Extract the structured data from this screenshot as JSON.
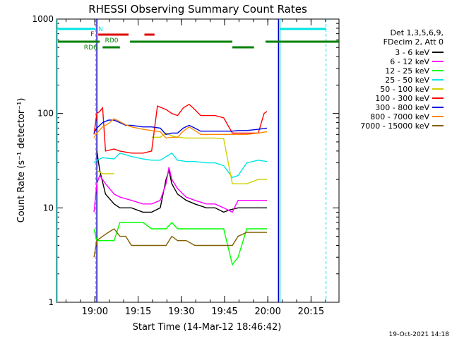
{
  "chart_data": {
    "type": "line",
    "title": "RHESSI Observing Summary Count Rates",
    "xlabel": "Start Time (14-Mar-12 18:46:42)",
    "ylabel": "Count Rate (s⁻¹ detector⁻¹)",
    "yscale": "log",
    "ylim": [
      1,
      1000
    ],
    "xlim_minutes_after_start": [
      0,
      98
    ],
    "y_tick_labels": [
      "1",
      "10",
      "100",
      "1000"
    ],
    "x_ticks": [
      {
        "label": "19:00",
        "minute": 13.3
      },
      {
        "label": "19:15",
        "minute": 28.3
      },
      {
        "label": "19:30",
        "minute": 43.3
      },
      {
        "label": "19:45",
        "minute": 58.3
      },
      {
        "label": "20:00",
        "minute": 73.3
      },
      {
        "label": "20:15",
        "minute": 88.3
      }
    ],
    "legend_header": [
      "Det 1,3,5,6,9,",
      "FDecim 2, Att 0"
    ],
    "legend_placement": "right",
    "series": [
      {
        "name": "3 - 6 keV",
        "color": "#000000",
        "points": [
          [
            13,
            0
          ],
          [
            14,
            40
          ],
          [
            15,
            25
          ],
          [
            17,
            14
          ],
          [
            20,
            11
          ],
          [
            22,
            10
          ],
          [
            26,
            10
          ],
          [
            30,
            9
          ],
          [
            33,
            9
          ],
          [
            36,
            10
          ],
          [
            38,
            20
          ],
          [
            39,
            25
          ],
          [
            40,
            18
          ],
          [
            42,
            14
          ],
          [
            45,
            12
          ],
          [
            48,
            11
          ],
          [
            52,
            10
          ],
          [
            55,
            10
          ],
          [
            58,
            9
          ],
          [
            60,
            9.5
          ],
          [
            63,
            10
          ],
          [
            66,
            10
          ],
          [
            70,
            10
          ],
          [
            73,
            10
          ]
        ]
      },
      {
        "name": "6 - 12 keV",
        "color": "#ff00ff",
        "points": [
          [
            13,
            9
          ],
          [
            14,
            18
          ],
          [
            15,
            22
          ],
          [
            17,
            18
          ],
          [
            20,
            14
          ],
          [
            22,
            13
          ],
          [
            26,
            12
          ],
          [
            30,
            11
          ],
          [
            33,
            11
          ],
          [
            36,
            12
          ],
          [
            38,
            18
          ],
          [
            39,
            27
          ],
          [
            40,
            20
          ],
          [
            42,
            16
          ],
          [
            45,
            13
          ],
          [
            48,
            12
          ],
          [
            52,
            11
          ],
          [
            55,
            11
          ],
          [
            58,
            10
          ],
          [
            61,
            9
          ],
          [
            63,
            12
          ],
          [
            66,
            12
          ],
          [
            70,
            12
          ],
          [
            73,
            12
          ]
        ]
      },
      {
        "name": "12 - 25 keV",
        "color": "#00ff00",
        "points": [
          [
            13,
            6
          ],
          [
            14,
            4.5
          ],
          [
            16,
            4.5
          ],
          [
            20,
            4.5
          ],
          [
            22,
            7
          ],
          [
            26,
            7
          ],
          [
            30,
            7
          ],
          [
            33,
            6
          ],
          [
            36,
            6
          ],
          [
            38,
            6
          ],
          [
            40,
            7
          ],
          [
            42,
            6
          ],
          [
            45,
            6
          ],
          [
            48,
            6
          ],
          [
            52,
            6
          ],
          [
            55,
            6
          ],
          [
            58,
            6
          ],
          [
            61,
            2.5
          ],
          [
            63,
            3
          ],
          [
            66,
            6
          ],
          [
            70,
            6
          ],
          [
            73,
            6
          ]
        ]
      },
      {
        "name": "25 - 50 keV",
        "color": "#00e5e5",
        "points": [
          [
            13,
            30
          ],
          [
            14,
            32
          ],
          [
            16,
            34
          ],
          [
            20,
            33
          ],
          [
            22,
            38
          ],
          [
            26,
            35
          ],
          [
            30,
            33
          ],
          [
            33,
            32
          ],
          [
            36,
            32
          ],
          [
            40,
            38
          ],
          [
            42,
            32
          ],
          [
            45,
            31
          ],
          [
            48,
            31
          ],
          [
            52,
            30
          ],
          [
            55,
            30
          ],
          [
            58,
            28
          ],
          [
            61,
            21
          ],
          [
            63,
            22
          ],
          [
            66,
            30
          ],
          [
            70,
            32
          ],
          [
            73,
            31
          ]
        ]
      },
      {
        "name": "50 - 100 keV",
        "color": "#d0d000",
        "points": [
          [
            14,
            25
          ],
          [
            16,
            23
          ],
          [
            20,
            23
          ],
          [
            22,
            0
          ],
          [
            33,
            56
          ],
          [
            36,
            56
          ],
          [
            38,
            62
          ],
          [
            40,
            58
          ],
          [
            42,
            56
          ],
          [
            45,
            55
          ],
          [
            55,
            55
          ],
          [
            58,
            54
          ],
          [
            61,
            18
          ],
          [
            63,
            18
          ],
          [
            66,
            18
          ],
          [
            70,
            20
          ],
          [
            73,
            20
          ]
        ]
      },
      {
        "name": "100 - 300 keV",
        "color": "#ff0000",
        "points": [
          [
            13,
            60
          ],
          [
            14,
            100
          ],
          [
            15,
            105
          ],
          [
            16,
            115
          ],
          [
            17,
            40
          ],
          [
            20,
            42
          ],
          [
            22,
            40
          ],
          [
            26,
            38
          ],
          [
            30,
            38
          ],
          [
            33,
            40
          ],
          [
            35,
            120
          ],
          [
            38,
            110
          ],
          [
            40,
            100
          ],
          [
            42,
            95
          ],
          [
            44,
            115
          ],
          [
            46,
            125
          ],
          [
            48,
            110
          ],
          [
            50,
            95
          ],
          [
            55,
            95
          ],
          [
            58,
            90
          ],
          [
            61,
            62
          ],
          [
            63,
            62
          ],
          [
            66,
            62
          ],
          [
            70,
            62
          ],
          [
            72,
            100
          ],
          [
            73,
            105
          ]
        ]
      },
      {
        "name": "300 - 800 keV",
        "color": "#0000e5",
        "points": [
          [
            13,
            62
          ],
          [
            14,
            70
          ],
          [
            16,
            80
          ],
          [
            18,
            85
          ],
          [
            20,
            85
          ],
          [
            22,
            80
          ],
          [
            24,
            75
          ],
          [
            26,
            75
          ],
          [
            30,
            72
          ],
          [
            33,
            72
          ],
          [
            36,
            70
          ],
          [
            38,
            60
          ],
          [
            40,
            62
          ],
          [
            42,
            62
          ],
          [
            44,
            70
          ],
          [
            46,
            75
          ],
          [
            48,
            70
          ],
          [
            50,
            65
          ],
          [
            55,
            65
          ],
          [
            58,
            65
          ],
          [
            61,
            65
          ],
          [
            63,
            66
          ],
          [
            66,
            66
          ],
          [
            70,
            68
          ],
          [
            73,
            70
          ]
        ]
      },
      {
        "name": "800 - 7000 keV",
        "color": "#ff8800",
        "points": [
          [
            13,
            55
          ],
          [
            14,
            62
          ],
          [
            16,
            72
          ],
          [
            18,
            78
          ],
          [
            20,
            88
          ],
          [
            22,
            82
          ],
          [
            24,
            76
          ],
          [
            26,
            72
          ],
          [
            30,
            68
          ],
          [
            33,
            66
          ],
          [
            36,
            64
          ],
          [
            38,
            55
          ],
          [
            40,
            56
          ],
          [
            42,
            56
          ],
          [
            44,
            65
          ],
          [
            46,
            72
          ],
          [
            48,
            66
          ],
          [
            50,
            60
          ],
          [
            55,
            60
          ],
          [
            58,
            60
          ],
          [
            61,
            60
          ],
          [
            63,
            60
          ],
          [
            66,
            60
          ],
          [
            70,
            62
          ],
          [
            73,
            64
          ]
        ]
      },
      {
        "name": "7000 - 15000 keV",
        "color": "#806000",
        "points": [
          [
            13,
            3
          ],
          [
            14,
            4.5
          ],
          [
            16,
            5
          ],
          [
            18,
            5.5
          ],
          [
            20,
            6
          ],
          [
            22,
            5
          ],
          [
            24,
            5
          ],
          [
            26,
            4
          ],
          [
            30,
            4
          ],
          [
            33,
            4
          ],
          [
            36,
            4
          ],
          [
            38,
            4
          ],
          [
            40,
            5
          ],
          [
            42,
            4.5
          ],
          [
            45,
            4.5
          ],
          [
            48,
            4
          ],
          [
            52,
            4
          ],
          [
            55,
            4
          ],
          [
            58,
            4
          ],
          [
            61,
            4
          ],
          [
            63,
            5
          ],
          [
            66,
            5.5
          ],
          [
            70,
            5.5
          ],
          [
            73,
            5.5
          ]
        ]
      }
    ],
    "annotations": [
      "N",
      "F",
      "RD0",
      "RD6"
    ],
    "footer_date": "19-Oct-2021 14:18"
  }
}
